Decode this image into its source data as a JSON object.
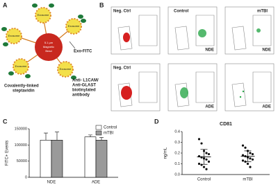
{
  "figure": {
    "panel_labels": [
      "A",
      "B",
      "C",
      "D"
    ],
    "diagram": {
      "bead_label": [
        "5.1 µm",
        "Magnetic",
        "Bead"
      ],
      "exosome_labels": [
        "Exosome",
        "Exosome",
        "Exosome",
        "Exosome",
        "Exosome"
      ],
      "exo_fitc": "Exo-FITC",
      "antibody": [
        "Anti- L1CAM/",
        "Anti-GLAST",
        "biotinylated",
        "antibody"
      ],
      "streptavidin": [
        "Covalently-linked",
        "steptavidin"
      ]
    },
    "flow": {
      "row1": [
        "Neg. Ctrl",
        "Control",
        "mTBI"
      ],
      "row1_tags": [
        "NDE",
        "NDE"
      ],
      "row2": [
        "Neg. Ctrl"
      ],
      "row2_tags": [
        "ADE",
        "ADE"
      ]
    }
  },
  "chart_data": [
    {
      "type": "bar",
      "ylabel": "FITC+ Events",
      "categories": [
        "NDE",
        "ADE"
      ],
      "series": [
        {
          "name": "Control",
          "color": "#ffffff",
          "values": [
            115000,
            125000
          ],
          "errors": [
            22000,
            6000
          ]
        },
        {
          "name": "mTBI",
          "color": "#9a9a9a",
          "values": [
            115000,
            115000
          ],
          "errors": [
            25000,
            8000
          ]
        }
      ],
      "ylim": [
        0,
        150000
      ],
      "yticks": [
        0,
        50000,
        100000,
        150000
      ],
      "legend": "top-right"
    },
    {
      "type": "strip",
      "title": "CD81",
      "ylabel": "ng/mL",
      "categories": [
        "Control",
        "mTBI"
      ],
      "series": [
        {
          "name": "Control",
          "color": "#111111",
          "values": [
            0.33,
            0.29,
            0.22,
            0.2,
            0.19,
            0.17,
            0.16,
            0.15,
            0.14,
            0.12,
            0.1,
            0.09,
            0.07,
            0.05
          ],
          "mean": 0.165,
          "error": 0.07
        },
        {
          "name": "mTBI",
          "color": "#111111",
          "values": [
            0.27,
            0.25,
            0.22,
            0.2,
            0.19,
            0.18,
            0.17,
            0.16,
            0.15,
            0.14,
            0.13,
            0.12,
            0.1,
            0.07
          ],
          "mean": 0.17,
          "error": 0.05
        }
      ],
      "ylim": [
        0,
        0.4
      ],
      "yticks": [
        {
          "value": 0,
          "label": "0.0"
        },
        {
          "value": 0.1,
          "label": "0.1"
        },
        {
          "value": 0.2,
          "label": "0.2"
        },
        {
          "value": 0.3,
          "label": "0.3"
        },
        {
          "value": 0.4,
          "label": "0.4"
        }
      ]
    }
  ]
}
